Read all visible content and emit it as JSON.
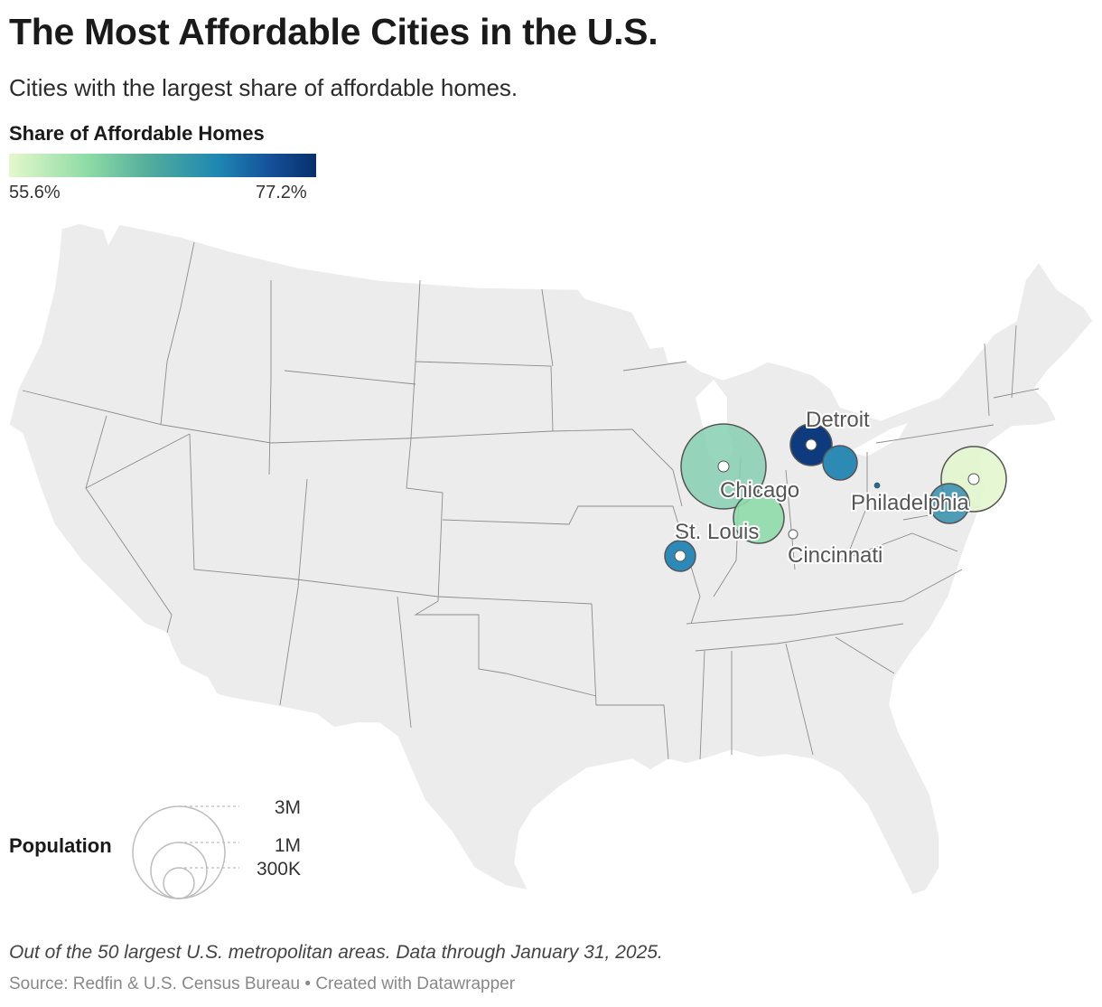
{
  "header": {
    "title": "The Most Affordable Cities in the U.S.",
    "subtitle": "Cities with the largest share of affordable homes."
  },
  "color_legend": {
    "title": "Share of Affordable Homes",
    "min_label": "55.6%",
    "max_label": "77.2%",
    "colors": [
      "#e4f8cc",
      "#90dca6",
      "#54ae9c",
      "#1e87b2",
      "#15509a",
      "#08306b"
    ]
  },
  "size_legend": {
    "title": "Population",
    "labels": [
      "3M",
      "1M",
      "300K"
    ]
  },
  "cities": [
    {
      "id": "detroit",
      "label": "Detroit",
      "fill": "#0d3b7e"
    },
    {
      "id": "toledo",
      "label": "",
      "fill": "#2d8ab5"
    },
    {
      "id": "chicago",
      "label": "Chicago",
      "fill": "#86d0b1"
    },
    {
      "id": "indianapolis",
      "label": "",
      "fill": "#8edca9"
    },
    {
      "id": "st-louis",
      "label": "St. Louis",
      "fill": "#2b8ab8"
    },
    {
      "id": "cincinnati",
      "label": "Cincinnati",
      "fill": "#ffffff"
    },
    {
      "id": "pittsburgh",
      "label": "",
      "fill": "#1a6e98"
    },
    {
      "id": "philadelphia",
      "label": "Philadelphia",
      "fill": "#e2f6ce"
    },
    {
      "id": "baltimore",
      "label": "",
      "fill": "#3e93b1"
    }
  ],
  "footer": {
    "note": "Out of the 50 largest U.S. metropolitan areas. Data through January 31, 2025.",
    "source": "Source: Redfin & U.S. Census Bureau • Created with Datawrapper"
  }
}
